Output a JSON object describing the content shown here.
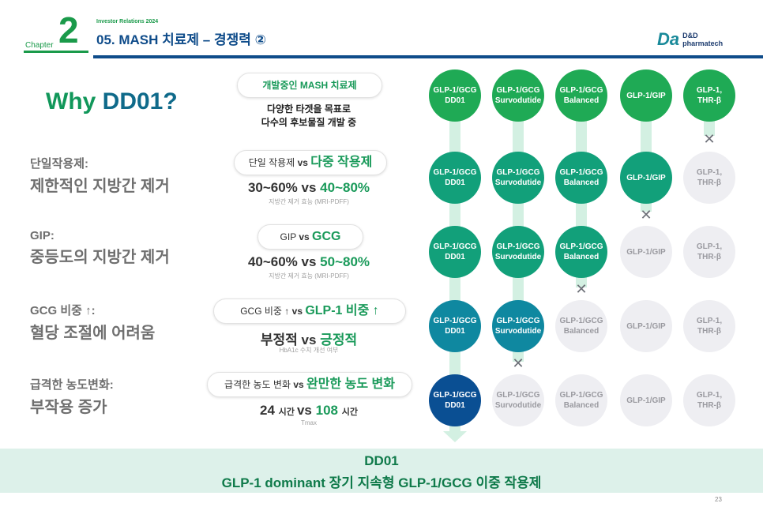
{
  "header": {
    "chapter_word": "Chapter",
    "chapter_number": "2",
    "ir_label": "Investor Relations 2024",
    "title": "05. MASH 치료제 – 경쟁력 ②",
    "logo_mark": "Da",
    "logo_line1": "D&D",
    "logo_line2": "pharmatech"
  },
  "left": {
    "why_part1": "Why ",
    "why_part2": "DD01?",
    "points": [
      {
        "sub": "단일작용제:",
        "main": "제한적인 지방간 제거"
      },
      {
        "sub": "GIP:",
        "main": "중등도의 지방간 제거"
      },
      {
        "sub": "GCG 비중 ↑:",
        "main": "혈당 조절에 어려움"
      },
      {
        "sub": "급격한 농도변화:",
        "main": "부작용 증가"
      }
    ]
  },
  "middle": {
    "top_pill": "개발중인 MASH 치료제",
    "top_line1": "다양한 타겟을 목표로",
    "top_line2": "다수의 후보물질 개발 중",
    "rows": [
      {
        "left": "단일 작용제 ",
        "vs": "vs ",
        "right": "다중 작용제",
        "cmp_a": "30~60% ",
        "cmp_vs": "vs ",
        "cmp_b": "40~80%",
        "note": "지방간 제거 효능 (MRI-PDFF)"
      },
      {
        "left": "GIP ",
        "vs": "vs ",
        "right": "GCG",
        "cmp_a": "40~60% ",
        "cmp_vs": "vs ",
        "cmp_b": "50~80%",
        "note": "지방간 제거 효능 (MRI-PDFF)"
      },
      {
        "left": "GCG 비중 ↑ ",
        "vs": "vs ",
        "right": "GLP-1 비중 ↑",
        "cmp_a": "부정적 ",
        "cmp_vs": "vs ",
        "cmp_b": "긍정적",
        "note": "HbA1c 수치 개선 여부"
      },
      {
        "left": "급격한 농도 변화 ",
        "vs": "vs ",
        "right": "완만한 농도 변화",
        "cmp_a": "24 ",
        "cmp_a_unit": "시간 ",
        "cmp_vs": "vs ",
        "cmp_b": "108 ",
        "cmp_b_unit": "시간",
        "note": "Tmax"
      }
    ]
  },
  "grid": {
    "columns": [
      {
        "line1": "GLP-1/GCG",
        "line2": "DD01"
      },
      {
        "line1": "GLP-1/GCG",
        "line2": "Survodutide"
      },
      {
        "line1": "GLP-1/GCG",
        "line2": "Balanced"
      },
      {
        "line1": "GLP-1/GIP",
        "line2": ""
      },
      {
        "line1": "GLP-1,",
        "line2": "THR-β"
      }
    ],
    "x_mark": "✕"
  },
  "footer": {
    "line1": "DD01",
    "line2": "GLP-1 dominant 장기 지속형 GLP-1/GCG 이중 작용제"
  },
  "page_number": "23",
  "colors": {
    "green": "#1faa55",
    "teal": "#12a07a",
    "blue_teal": "#0f88a0",
    "navy": "#0a4f93",
    "inactive": "#eeeef2"
  }
}
